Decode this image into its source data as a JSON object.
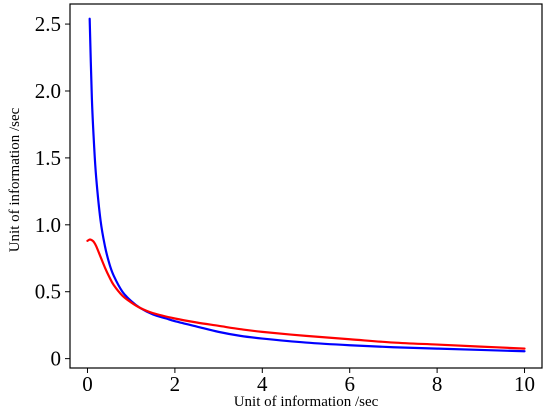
{
  "chart_data": {
    "type": "line",
    "title": "",
    "xlabel": "Unit of information /sec",
    "ylabel": "Unit of information /sec",
    "xlim": [
      -0.4,
      10.4
    ],
    "ylim": [
      -0.07,
      2.65
    ],
    "xticks": [
      0,
      2,
      4,
      6,
      8,
      10
    ],
    "xtick_labels": [
      "0",
      "2",
      "4",
      "6",
      "8",
      "10"
    ],
    "yticks": [
      0,
      0.5,
      1.0,
      1.5,
      2.0,
      2.5
    ],
    "ytick_labels": [
      "0",
      "0.5",
      "1.0",
      "1.5",
      "2.0",
      "2.5"
    ],
    "grid": false,
    "legend": "none",
    "series": [
      {
        "color": "#0000ff",
        "x": [
          0.05,
          0.1,
          0.15,
          0.2,
          0.3,
          0.4,
          0.5,
          0.6,
          0.8,
          1.0,
          1.2,
          1.5,
          1.8,
          2.0,
          2.5,
          3.0,
          3.5,
          4.0,
          5.0,
          6.0,
          7.0,
          8.0,
          9.0,
          10.0
        ],
        "y": [
          2.54,
          1.95,
          1.6,
          1.35,
          1.03,
          0.84,
          0.71,
          0.62,
          0.5,
          0.43,
          0.38,
          0.33,
          0.3,
          0.28,
          0.24,
          0.2,
          0.17,
          0.15,
          0.12,
          0.1,
          0.085,
          0.075,
          0.065,
          0.055
        ]
      },
      {
        "color": "#ff0000",
        "x": [
          0.0,
          0.05,
          0.1,
          0.15,
          0.2,
          0.3,
          0.4,
          0.5,
          0.6,
          0.8,
          1.0,
          1.2,
          1.5,
          2.0,
          2.5,
          3.0,
          3.5,
          4.0,
          5.0,
          6.0,
          7.0,
          8.0,
          9.0,
          10.0
        ],
        "y": [
          0.88,
          0.89,
          0.885,
          0.87,
          0.84,
          0.76,
          0.68,
          0.61,
          0.55,
          0.47,
          0.42,
          0.38,
          0.34,
          0.3,
          0.27,
          0.245,
          0.22,
          0.2,
          0.17,
          0.145,
          0.12,
          0.105,
          0.09,
          0.075
        ]
      }
    ]
  }
}
